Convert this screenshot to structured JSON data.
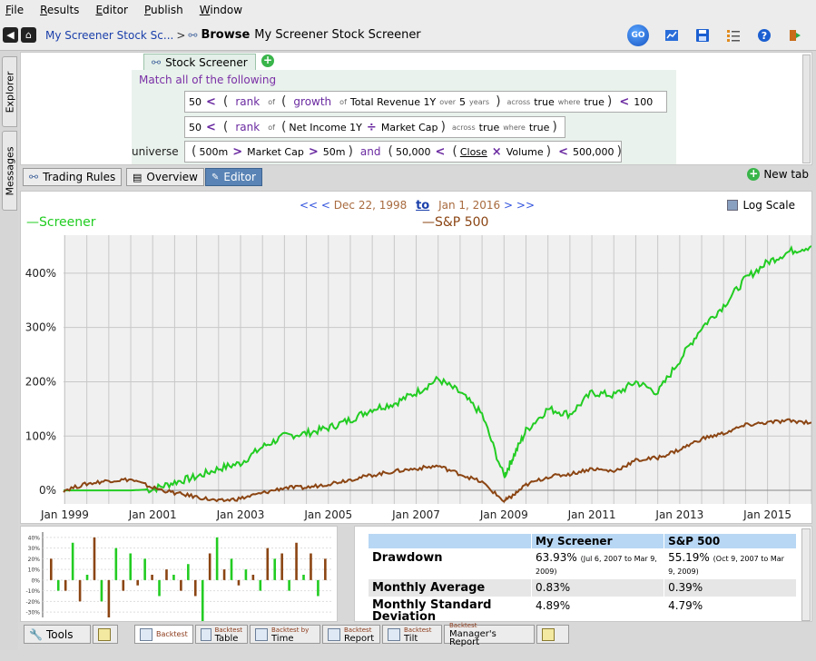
{
  "menu": [
    "File",
    "Results",
    "Editor",
    "Publish",
    "Window"
  ],
  "toolbar": {
    "breadcrumb": "My Screener Stock Sc...",
    "breadcrumb_sep": ">",
    "browse": "Browse",
    "title": "My Screener Stock Screener",
    "go_label": "GO"
  },
  "sidebar": {
    "explorer": "Explorer",
    "messages": "Messages"
  },
  "editor": {
    "tab_label": "Stock Screener",
    "match": "Match all of the following",
    "universe": "universe",
    "rule1": {
      "a": "50",
      "lt": "<",
      "rank": "rank",
      "of": "of",
      "growth": "growth",
      "of2": "of",
      "field": "Total Revenue 1Y",
      "over": "over",
      "n": "5",
      "years": "years",
      "across": "across",
      "t1": "true",
      "where": "where",
      "t2": "true",
      "lt2": "<",
      "b": "100"
    },
    "rule2": {
      "a": "50",
      "lt": "<",
      "rank": "rank",
      "of": "of",
      "f1": "Net Income 1Y",
      "div": "÷",
      "f2": "Market Cap",
      "across": "across",
      "t1": "true",
      "where": "where",
      "t2": "true"
    },
    "rule3": {
      "a": "500m",
      "gt": ">",
      "f": "Market Cap",
      "gt2": ">",
      "b": "50m",
      "and": "and",
      "c": "50,000",
      "lt": "<",
      "close": "Close",
      "mul": "×",
      "vol": "Volume",
      "lt2": "<",
      "d": "500,000"
    }
  },
  "viewtabs": {
    "trading_rules": "Trading Rules",
    "overview": "Overview",
    "editor": "Editor",
    "new_tab": "New tab"
  },
  "range": {
    "prev2": "<<",
    "prev": "<",
    "start": "Dec 22, 1998",
    "to": "to",
    "end": "Jan 1, 2016",
    "next": ">",
    "next2": ">>",
    "log_scale": "Log Scale"
  },
  "colors": {
    "screener": "#22cc22",
    "sp500": "#8b4513"
  },
  "chart_data": {
    "type": "line",
    "legend": [
      "Screener",
      "S&P 500"
    ],
    "x_ticks": [
      "Jan 1999",
      "Jan 2001",
      "Jan 2003",
      "Jan 2005",
      "Jan 2007",
      "Jan 2009",
      "Jan 2011",
      "Jan 2013",
      "Jan 2015"
    ],
    "y_ticks": [
      "0%",
      "100%",
      "200%",
      "300%",
      "400%"
    ],
    "ylim": [
      -25,
      470
    ],
    "x_years": [
      1998.97,
      1999.5,
      2000.0,
      2000.5,
      2001.0,
      2001.5,
      2002.0,
      2002.5,
      2003.0,
      2003.5,
      2004.0,
      2004.5,
      2005.0,
      2005.5,
      2006.0,
      2006.5,
      2007.0,
      2007.5,
      2008.0,
      2008.5,
      2009.0,
      2009.2,
      2009.5,
      2010.0,
      2010.5,
      2011.0,
      2011.5,
      2012.0,
      2012.5,
      2013.0,
      2013.5,
      2014.0,
      2014.5,
      2015.0,
      2015.5,
      2016.0
    ],
    "series": [
      {
        "name": "Screener",
        "values": [
          0,
          0,
          0,
          0,
          2,
          15,
          25,
          40,
          50,
          80,
          100,
          105,
          115,
          130,
          150,
          160,
          180,
          205,
          180,
          140,
          25,
          60,
          110,
          150,
          140,
          180,
          175,
          200,
          180,
          240,
          300,
          340,
          390,
          420,
          440,
          450
        ]
      },
      {
        "name": "S&P 500",
        "values": [
          0,
          12,
          18,
          20,
          5,
          -5,
          -12,
          -20,
          -15,
          -5,
          5,
          5,
          12,
          20,
          28,
          35,
          40,
          45,
          30,
          15,
          -20,
          -10,
          10,
          25,
          30,
          40,
          35,
          55,
          60,
          75,
          95,
          105,
          120,
          125,
          128,
          125
        ]
      }
    ],
    "mini_bars": {
      "y_ticks": [
        "40%",
        "30%",
        "20%",
        "10%",
        "0%",
        "-10%",
        "-20%",
        "-30%"
      ],
      "values": [
        20,
        -10,
        -10,
        35,
        -20,
        5,
        40,
        -20,
        -35,
        30,
        -10,
        25,
        -5,
        20,
        5,
        -15,
        10,
        5,
        -10,
        15,
        -15,
        -40,
        25,
        40,
        10,
        20,
        -5,
        10,
        5,
        -10,
        30,
        20,
        25,
        -10,
        35,
        5,
        25,
        -15,
        20
      ]
    }
  },
  "stats": {
    "headers": [
      "",
      "My Screener",
      "S&P 500"
    ],
    "rows": [
      {
        "label": "Drawdown",
        "a": "63.93%",
        "a_note": "(Jul 6, 2007 to Mar 9, 2009)",
        "b": "55.19%",
        "b_note": "(Oct 9, 2007 to Mar 9, 2009)"
      },
      {
        "label": "Monthly Average",
        "a": "0.83%",
        "b": "0.39%"
      },
      {
        "label": "Monthly Standard Deviation",
        "a": "4.89%",
        "b": "4.79%"
      }
    ]
  },
  "bottomtabs": {
    "tools": "Tools",
    "backtest": "Backtest",
    "table_a": "Backtest",
    "table_b": "Table",
    "time_a": "Backtest by",
    "time_b": "Time",
    "report_a": "Backtest",
    "report_b": "Report",
    "tilt_a": "Backtest",
    "tilt_b": "Tilt",
    "mgr_a": "Backtest",
    "mgr_b": "Manager's Report"
  }
}
